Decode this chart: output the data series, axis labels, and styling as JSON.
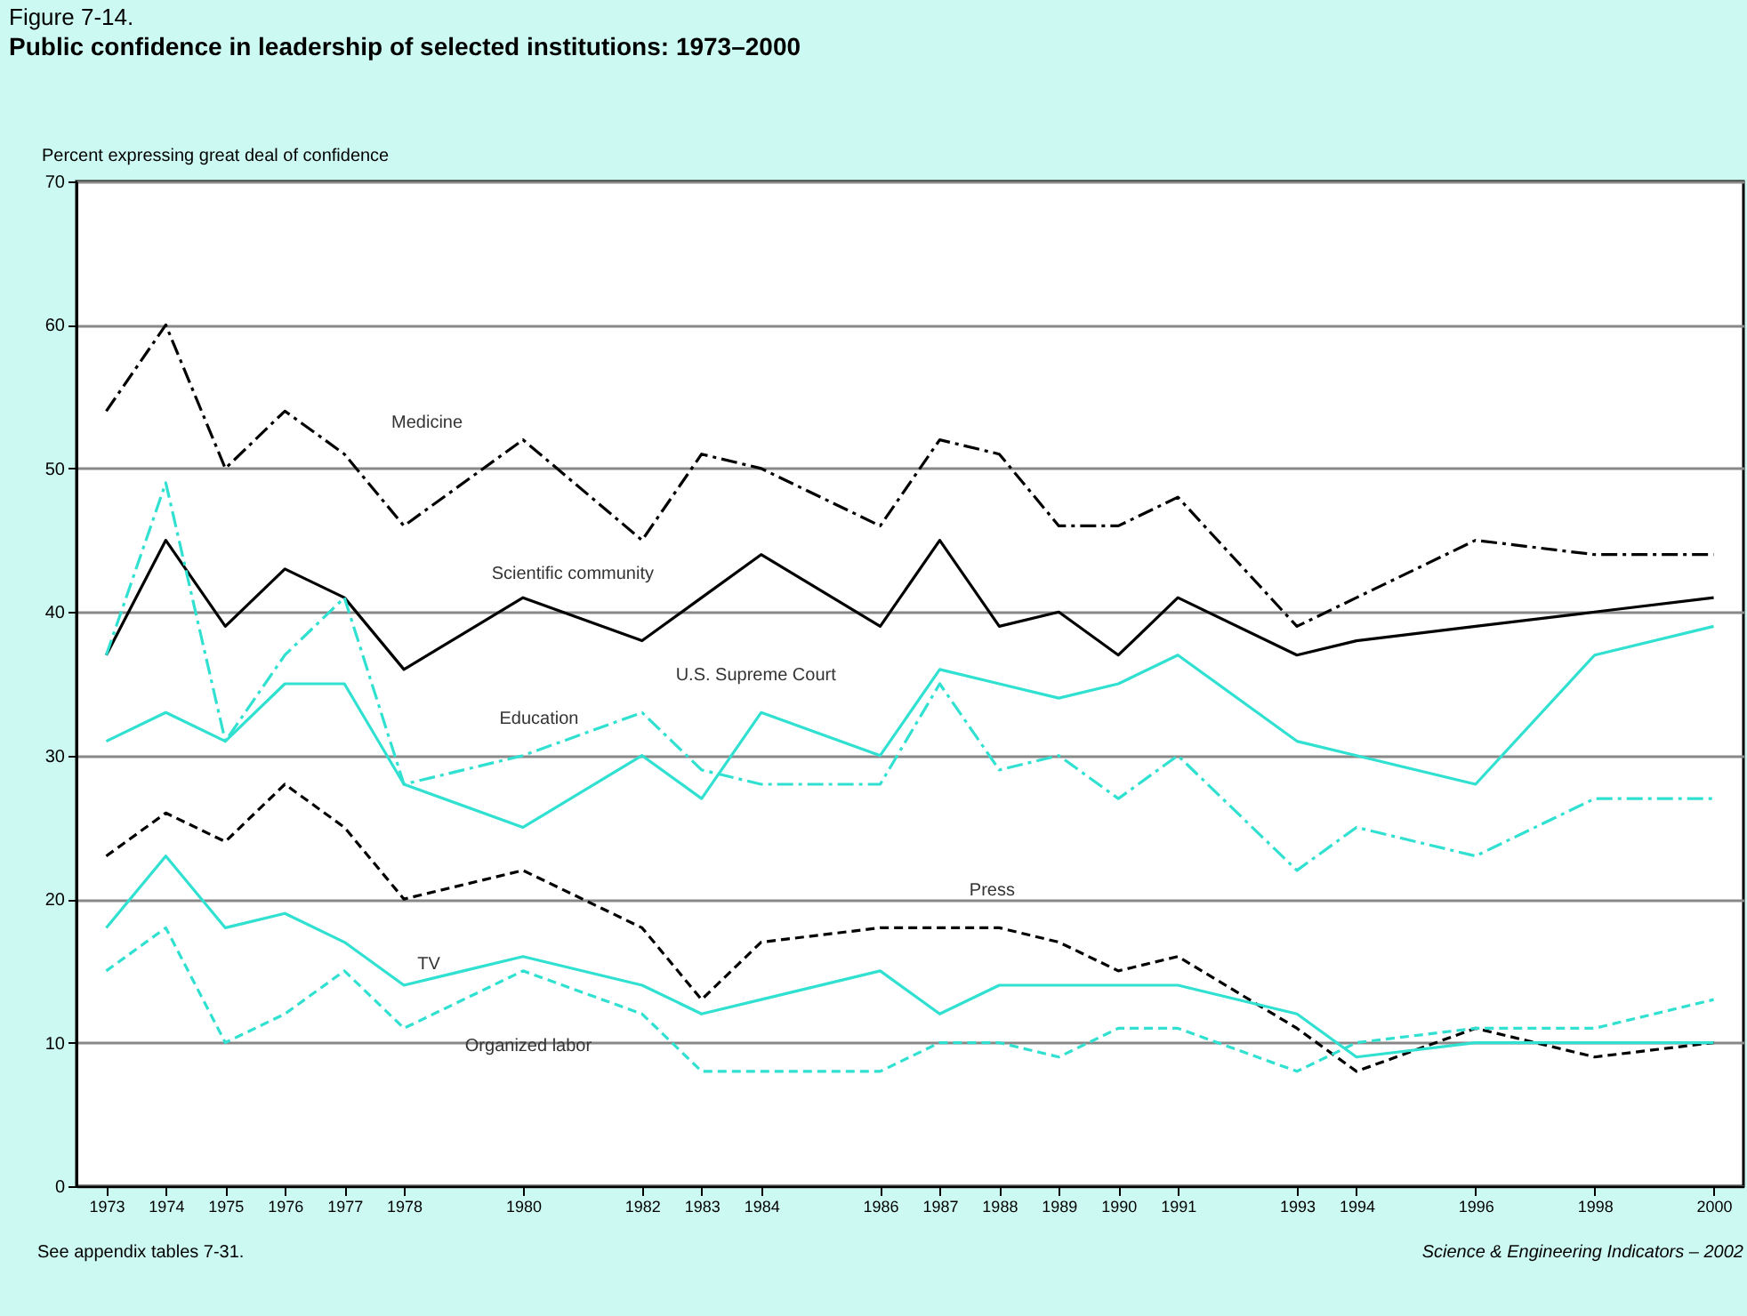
{
  "chart_data": {
    "type": "line",
    "title": "Figure 7-14.",
    "subtitle": "Public confidence in leadership of selected institutions: 1973–2000",
    "ylabel": "Percent expressing great deal of confidence",
    "x": [
      1973,
      1974,
      1975,
      1976,
      1977,
      1978,
      1980,
      1982,
      1983,
      1984,
      1986,
      1987,
      1988,
      1989,
      1990,
      1991,
      1993,
      1994,
      1996,
      1998,
      2000
    ],
    "xlim": [
      1972.5,
      2000.5
    ],
    "xticks": [
      1973,
      1974,
      1975,
      1976,
      1977,
      1978,
      1980,
      1982,
      1983,
      1984,
      1986,
      1987,
      1988,
      1989,
      1990,
      1991,
      1993,
      1994,
      1996,
      1998,
      2000
    ],
    "ylim": [
      0,
      70
    ],
    "yticks": [
      0,
      10,
      20,
      30,
      40,
      50,
      60,
      70
    ],
    "grid": "y",
    "marker": "none",
    "series": [
      {
        "name": "Medicine",
        "color": "#000000",
        "line_style": "dashdot",
        "values": [
          54,
          60,
          50,
          54,
          51,
          46,
          52,
          45,
          51,
          50,
          46,
          52,
          51,
          46,
          46,
          48,
          39,
          41,
          45,
          44,
          44
        ]
      },
      {
        "name": "Scientific community",
        "color": "#000000",
        "line_style": "solid",
        "values": [
          37,
          45,
          39,
          43,
          41,
          36,
          41,
          38,
          41,
          44,
          39,
          45,
          39,
          40,
          37,
          41,
          37,
          38,
          39,
          40,
          41
        ]
      },
      {
        "name": "U.S. Supreme Court",
        "color": "#30e0d0",
        "line_style": "solid",
        "values": [
          31,
          33,
          31,
          35,
          35,
          28,
          25,
          30,
          27,
          33,
          30,
          36,
          35,
          34,
          35,
          37,
          31,
          30,
          28,
          37,
          39
        ]
      },
      {
        "name": "Education",
        "color": "#30e0d0",
        "line_style": "dashdot",
        "values": [
          37,
          49,
          31,
          37,
          41,
          28,
          30,
          33,
          29,
          28,
          28,
          35,
          29,
          30,
          27,
          30,
          22,
          25,
          23,
          27,
          27
        ]
      },
      {
        "name": "Press",
        "color": "#000000",
        "line_style": "dashed",
        "values": [
          23,
          26,
          24,
          28,
          25,
          20,
          22,
          18,
          13,
          17,
          18,
          18,
          18,
          17,
          15,
          16,
          11,
          8,
          11,
          9,
          10
        ]
      },
      {
        "name": "TV",
        "color": "#30e0d0",
        "line_style": "solid",
        "values": [
          18,
          23,
          18,
          19,
          17,
          14,
          16,
          14,
          12,
          13,
          15,
          12,
          14,
          14,
          14,
          14,
          12,
          9,
          10,
          10,
          10
        ]
      },
      {
        "name": "Organized labor",
        "color": "#30e0d0",
        "line_style": "dashed",
        "values": [
          15,
          18,
          10,
          12,
          15,
          11,
          15,
          12,
          8,
          8,
          8,
          10,
          10,
          9,
          11,
          11,
          8,
          10,
          11,
          11,
          13
        ]
      }
    ],
    "annotations": [
      "See appendix tables 7-31.",
      "Science & Engineering Indicators – 2002"
    ]
  }
}
